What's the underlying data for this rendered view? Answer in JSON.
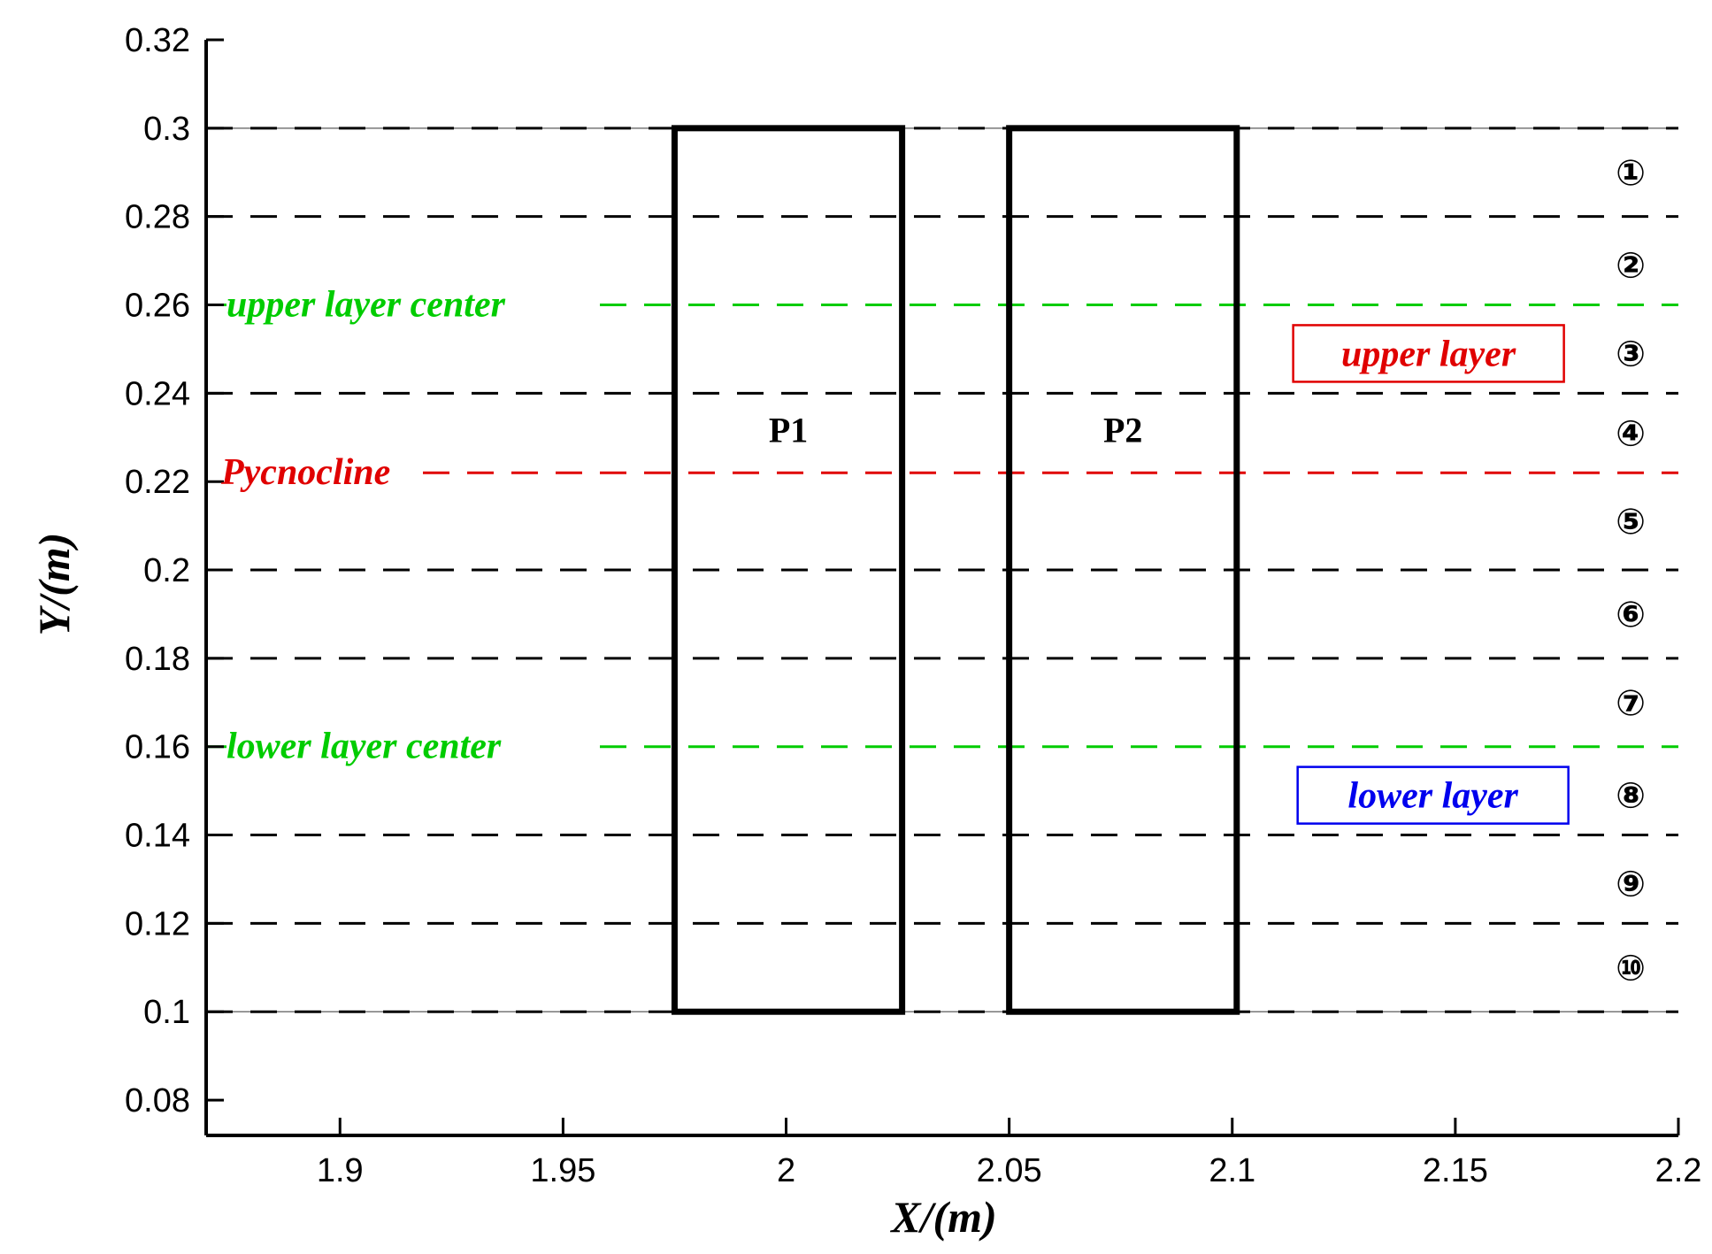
{
  "axes": {
    "xlabel": "X/(m)",
    "ylabel": "Y/(m)",
    "xlim": [
      1.87,
      2.2
    ],
    "ylim": [
      0.072,
      0.32
    ],
    "x_ticks": [
      "1.9",
      "1.95",
      "2",
      "2.05",
      "2.1",
      "2.15",
      "2.2"
    ],
    "y_ticks": [
      "0.08",
      "0.1",
      "0.12",
      "0.14",
      "0.16",
      "0.18",
      "0.2",
      "0.22",
      "0.24",
      "0.26",
      "0.28",
      "0.3",
      "0.32"
    ]
  },
  "layer_boundaries": [
    0.1,
    0.12,
    0.14,
    0.18,
    0.2,
    0.24,
    0.28,
    0.3
  ],
  "center_lines": [
    {
      "label": "upper layer center",
      "y": 0.26,
      "color": "#00cc00"
    },
    {
      "label": "lower layer center",
      "y": 0.16,
      "color": "#00cc00"
    }
  ],
  "pycnocline": {
    "label": "Pycnocline",
    "y": 0.222,
    "color": "#e00000"
  },
  "boxes": [
    {
      "label": "P1",
      "x0": 1.975,
      "x1": 2.026,
      "y0": 0.1,
      "y1": 0.3
    },
    {
      "label": "P2",
      "x0": 2.05,
      "x1": 2.101,
      "y0": 0.1,
      "y1": 0.3
    }
  ],
  "layer_tags": [
    {
      "label": "upper layer",
      "color": "#e00000",
      "x": 2.144,
      "y": 0.249
    },
    {
      "label": "lower layer",
      "color": "#0000ee",
      "x": 2.145,
      "y": 0.149
    }
  ],
  "layer_numbers": [
    {
      "label": "①",
      "y": 0.29
    },
    {
      "label": "②",
      "y": 0.269
    },
    {
      "label": "③",
      "y": 0.249
    },
    {
      "label": "④",
      "y": 0.231
    },
    {
      "label": "⑤",
      "y": 0.211
    },
    {
      "label": "⑥",
      "y": 0.19
    },
    {
      "label": "⑦",
      "y": 0.17
    },
    {
      "label": "⑧",
      "y": 0.149
    },
    {
      "label": "⑨",
      "y": 0.129
    },
    {
      "label": "⑩",
      "y": 0.11
    }
  ]
}
